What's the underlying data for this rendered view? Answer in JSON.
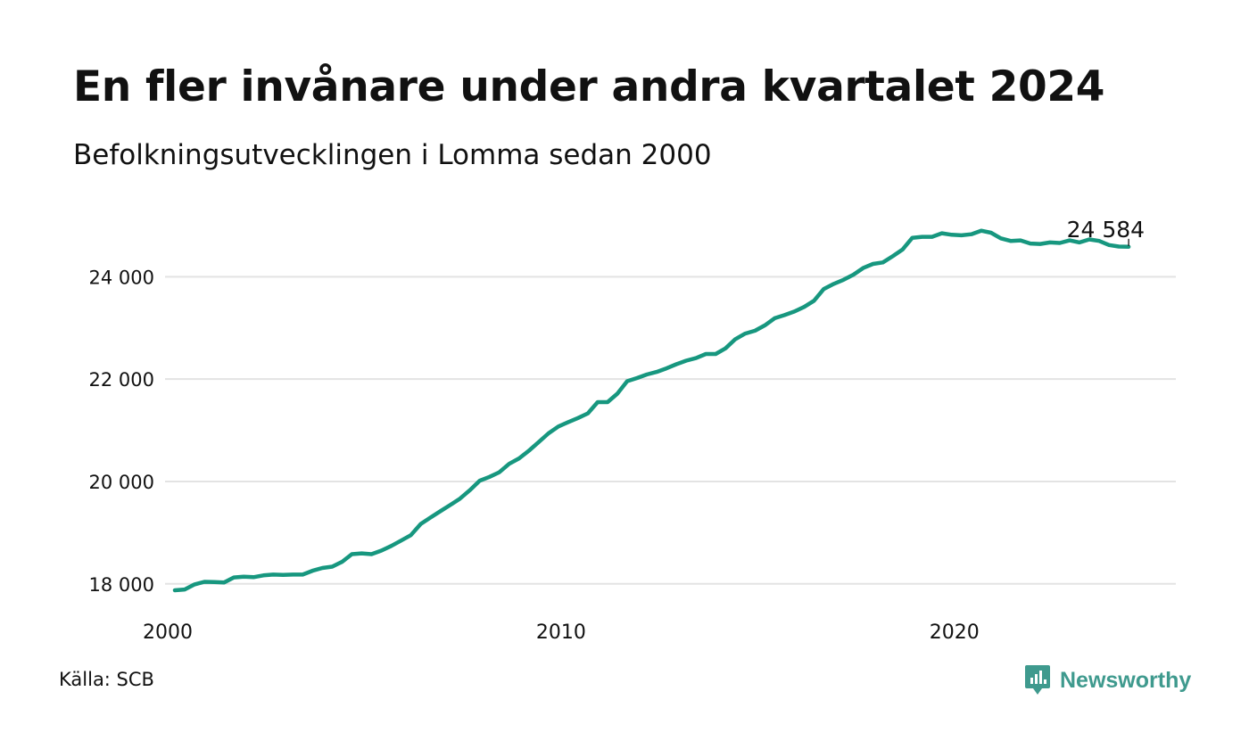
{
  "title": "En fler invånare under andra kvartalet 2024",
  "subtitle": "Befolkningsutvecklingen i Lomma sedan 2000",
  "source": "Källa: SCB",
  "brand": {
    "name": "Newsworthy",
    "icon": "newsworthy-logo-icon",
    "color": "#3f9a8e"
  },
  "colors": {
    "line": "#17977f",
    "grid": "#e3e3e3",
    "text": "#111111"
  },
  "chart_data": {
    "type": "line",
    "title": "En fler invånare under andra kvartalet 2024",
    "subtitle": "Befolkningsutvecklingen i Lomma sedan 2000",
    "xlabel": "",
    "ylabel": "",
    "xlim": [
      2000.0,
      2025.7
    ],
    "ylim": [
      17700,
      25400
    ],
    "x_ticks": [
      {
        "value": 2000,
        "label": "2000"
      },
      {
        "value": 2010,
        "label": "2010"
      },
      {
        "value": 2020,
        "label": "2020"
      }
    ],
    "y_ticks": [
      {
        "value": 18000,
        "label": "18 000"
      },
      {
        "value": 20000,
        "label": "20 000"
      },
      {
        "value": 22000,
        "label": "22 000"
      },
      {
        "value": 24000,
        "label": "24 000"
      }
    ],
    "grid": "horizontal",
    "legend": "none",
    "annotation": {
      "x": 2024.5,
      "y": 24584,
      "label": "24 584"
    },
    "series": [
      {
        "x": [
          2000.25,
          2000.5,
          2000.75,
          2001.0,
          2001.25,
          2001.5,
          2001.75,
          2002.0,
          2002.25,
          2002.5,
          2002.75,
          2003.0,
          2003.25,
          2003.5,
          2003.75,
          2004.0,
          2004.25,
          2004.5,
          2004.75,
          2005.0,
          2005.25,
          2005.5,
          2005.75,
          2006.0,
          2006.25,
          2006.5,
          2006.75,
          2007.0,
          2007.25,
          2007.5,
          2007.75,
          2008.0,
          2008.25,
          2008.5,
          2008.75,
          2009.0,
          2009.25,
          2009.5,
          2009.75,
          2010.0,
          2010.25,
          2010.5,
          2010.75,
          2011.0,
          2011.25,
          2011.5,
          2011.75,
          2012.0,
          2012.25,
          2012.5,
          2012.75,
          2013.0,
          2013.25,
          2013.5,
          2013.75,
          2014.0,
          2014.25,
          2014.5,
          2014.75,
          2015.0,
          2015.25,
          2015.5,
          2015.75,
          2016.0,
          2016.25,
          2016.5,
          2016.75,
          2017.0,
          2017.25,
          2017.5,
          2017.75,
          2018.0,
          2018.25,
          2018.5,
          2018.75,
          2019.0,
          2019.25,
          2019.5,
          2019.75,
          2020.0,
          2020.25,
          2020.5,
          2020.75,
          2021.0,
          2021.25,
          2021.5,
          2021.75,
          2022.0,
          2022.25,
          2022.5,
          2022.75,
          2023.0,
          2023.25,
          2023.5,
          2023.75,
          2024.0,
          2024.25,
          2024.5
        ],
        "values": [
          17875,
          17890,
          17990,
          18040,
          18035,
          18025,
          18125,
          18140,
          18130,
          18165,
          18180,
          18175,
          18180,
          18180,
          18255,
          18310,
          18335,
          18430,
          18580,
          18595,
          18580,
          18650,
          18740,
          18845,
          18950,
          19170,
          19295,
          19420,
          19540,
          19665,
          19830,
          20015,
          20090,
          20180,
          20345,
          20450,
          20600,
          20770,
          20940,
          21075,
          21160,
          21240,
          21330,
          21550,
          21550,
          21715,
          21960,
          22020,
          22090,
          22140,
          22210,
          22290,
          22360,
          22410,
          22490,
          22490,
          22600,
          22780,
          22890,
          22945,
          23050,
          23190,
          23250,
          23320,
          23410,
          23530,
          23760,
          23860,
          23940,
          24040,
          24170,
          24250,
          24280,
          24400,
          24530,
          24760,
          24780,
          24780,
          24850,
          24820,
          24810,
          24830,
          24900,
          24860,
          24750,
          24700,
          24710,
          24650,
          24640,
          24670,
          24660,
          24710,
          24670,
          24730,
          24700,
          24620,
          24590,
          24584
        ]
      }
    ]
  }
}
